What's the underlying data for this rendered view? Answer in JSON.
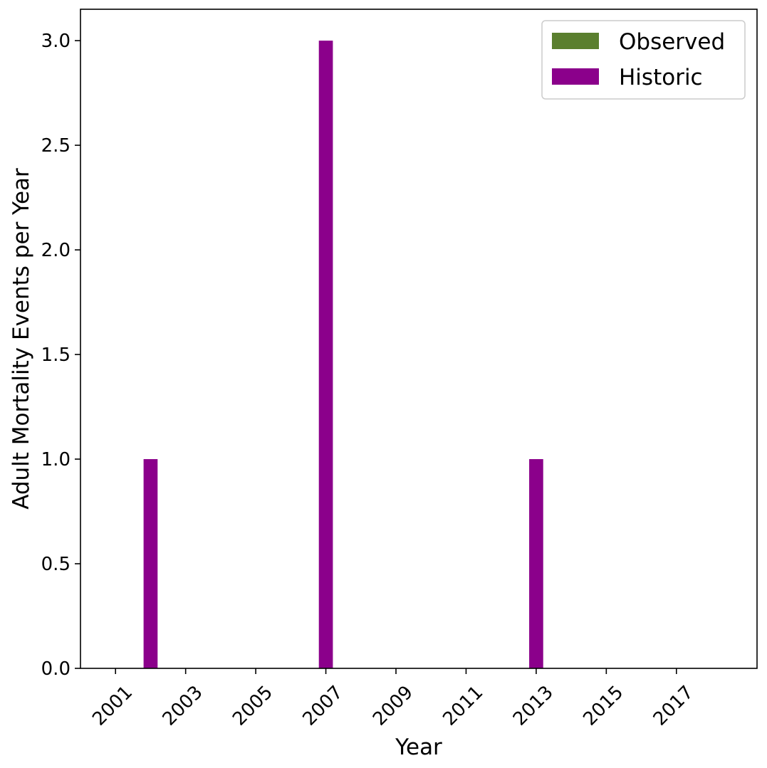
{
  "chart_data": {
    "type": "bar",
    "title": "",
    "xlabel": "Year",
    "ylabel": "Adult Mortality Events per Year",
    "xlim": [
      2000.0,
      2019.3
    ],
    "ylim": [
      0,
      3.15
    ],
    "x_ticks": [
      2001,
      2003,
      2005,
      2007,
      2009,
      2011,
      2013,
      2015,
      2017
    ],
    "x_tick_labels": [
      "2001",
      "2003",
      "2005",
      "2007",
      "2009",
      "2011",
      "2013",
      "2015",
      "2017"
    ],
    "y_ticks": [
      0.0,
      0.5,
      1.0,
      1.5,
      2.0,
      2.5,
      3.0
    ],
    "y_tick_labels": [
      "0.0",
      "0.5",
      "1.0",
      "1.5",
      "2.0",
      "2.5",
      "3.0"
    ],
    "grid": false,
    "legend_position": "top-right",
    "bar_width": 0.4,
    "series": [
      {
        "name": "Observed",
        "color": "#5a7f2e",
        "x": [],
        "values": []
      },
      {
        "name": "Historic",
        "color": "#8b008b",
        "x": [
          2002,
          2007,
          2013
        ],
        "values": [
          1,
          3,
          1
        ]
      }
    ]
  }
}
